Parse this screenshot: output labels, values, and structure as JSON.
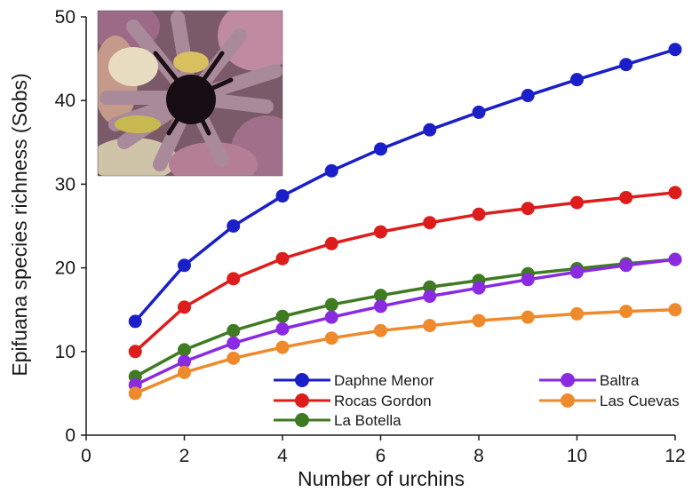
{
  "chart_data": {
    "type": "line",
    "xlabel": "Number of urchins",
    "ylabel": "Epifuana species richness (Sobs)",
    "xlim": [
      0,
      12
    ],
    "ylim": [
      0,
      50
    ],
    "xticks": [
      0,
      2,
      4,
      6,
      8,
      10,
      12
    ],
    "yticks": [
      0,
      10,
      20,
      30,
      40,
      50
    ],
    "grid": false,
    "legend_position": "bottom-right",
    "inset_image": "sea urchin photograph",
    "x": [
      1,
      2,
      3,
      4,
      5,
      6,
      7,
      8,
      9,
      10,
      11,
      12
    ],
    "series": [
      {
        "name": "Daphne Menor",
        "color": "#1a1fc8",
        "values": [
          13.6,
          20.3,
          25.0,
          28.6,
          31.6,
          34.2,
          36.5,
          38.6,
          40.6,
          42.5,
          44.3,
          46.1
        ]
      },
      {
        "name": "Rocas Gordon",
        "color": "#dd1c1c",
        "values": [
          10.0,
          15.3,
          18.7,
          21.1,
          22.9,
          24.3,
          25.4,
          26.4,
          27.1,
          27.8,
          28.4,
          29.0
        ]
      },
      {
        "name": "La Botella",
        "color": "#3f7b22",
        "values": [
          7.0,
          10.2,
          12.5,
          14.2,
          15.6,
          16.7,
          17.7,
          18.5,
          19.3,
          19.9,
          20.5,
          21.0
        ]
      },
      {
        "name": "Baltra",
        "color": "#8a2be2",
        "values": [
          6.0,
          8.8,
          11.0,
          12.7,
          14.1,
          15.4,
          16.6,
          17.6,
          18.6,
          19.5,
          20.3,
          21.0
        ]
      },
      {
        "name": "Las Cuevas",
        "color": "#ee8a2c",
        "values": [
          5.0,
          7.5,
          9.2,
          10.5,
          11.6,
          12.5,
          13.1,
          13.7,
          14.1,
          14.5,
          14.8,
          15.0
        ]
      }
    ]
  }
}
